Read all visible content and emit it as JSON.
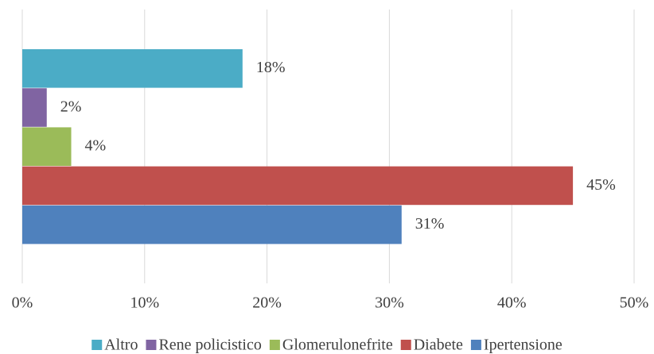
{
  "chart_data": {
    "type": "hbar",
    "series": [
      {
        "name": "Altro",
        "color": "#4bacc6",
        "values": [
          18
        ],
        "value_labels": [
          "18%"
        ]
      },
      {
        "name": "Rene policistico",
        "color": "#8064a2",
        "values": [
          2
        ],
        "value_labels": [
          "2%"
        ]
      },
      {
        "name": "Glomerulonefrite",
        "color": "#9bbb59",
        "values": [
          4
        ],
        "value_labels": [
          "4%"
        ]
      },
      {
        "name": "Diabete",
        "color": "#c0504d",
        "values": [
          45
        ],
        "value_labels": [
          "45%"
        ]
      },
      {
        "name": "Ipertensione",
        "color": "#4f81bd",
        "values": [
          31
        ],
        "value_labels": [
          "31%"
        ]
      }
    ],
    "xlim": [
      0,
      50
    ],
    "xticks": [
      {
        "value": 0,
        "label": "0%"
      },
      {
        "value": 10,
        "label": "10%"
      },
      {
        "value": 20,
        "label": "20%"
      },
      {
        "value": 30,
        "label": "30%"
      },
      {
        "value": 40,
        "label": "40%"
      },
      {
        "value": 50,
        "label": "50%"
      }
    ],
    "grid": true,
    "legend": "bottom"
  }
}
